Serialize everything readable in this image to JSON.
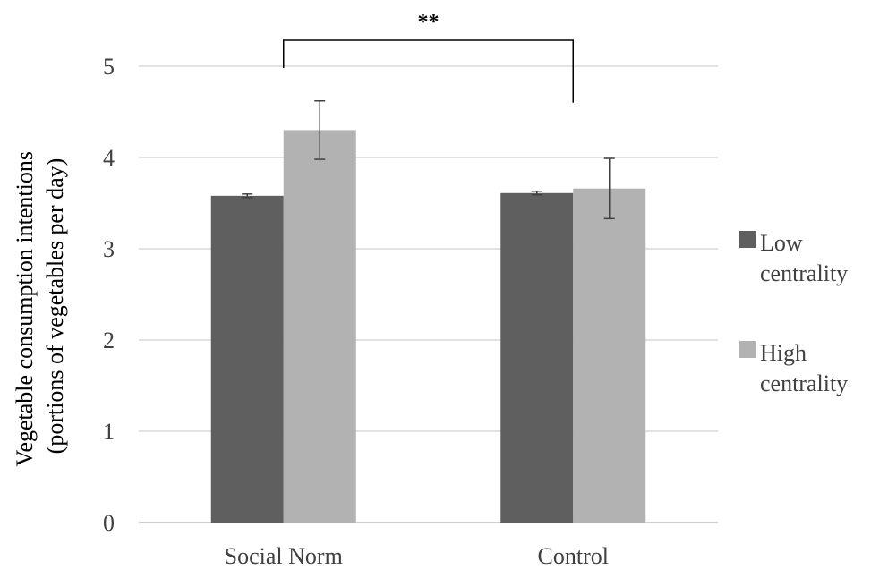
{
  "chart_data": {
    "type": "bar",
    "categories": [
      "Social Norm",
      "Control"
    ],
    "series": [
      {
        "name": "Low centrality",
        "values": [
          3.58,
          3.61
        ],
        "error": [
          0.02,
          0.02
        ]
      },
      {
        "name": "High centrality",
        "values": [
          4.3,
          3.66
        ],
        "error": [
          0.32,
          0.33
        ]
      }
    ],
    "xlabel": "",
    "ylabel": "Vegetable consumption intentions (portions of vegetables per day)",
    "ylabel_lines": [
      "Vegetable consumption intentions",
      "(portions of vegetables per day)"
    ],
    "ylim": [
      0,
      5
    ],
    "yticks": [
      "0",
      "1",
      "2",
      "3",
      "4",
      "5"
    ],
    "grid": true,
    "legend_position": "right",
    "legend_lines": [
      [
        "Low",
        "centrality"
      ],
      [
        "High",
        "centrality"
      ]
    ],
    "significance": {
      "label": "**",
      "between": [
        "Social Norm",
        "Control"
      ]
    },
    "colors": {
      "Low centrality": "#5f5f5f",
      "High centrality": "#b2b2b2",
      "grid": "#d9d9d9",
      "error": "#404040"
    }
  }
}
